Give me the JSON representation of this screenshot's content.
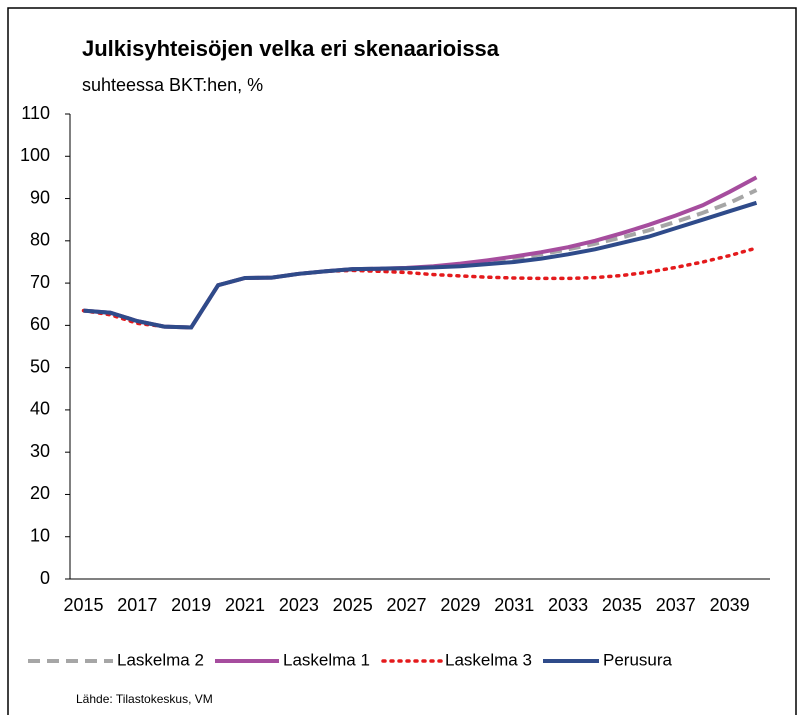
{
  "chart_data": {
    "type": "line",
    "title": "Julkisyhteisöjen velka eri skenaarioissa",
    "subtitle": "suhteessa BKT:hen, %",
    "source": "Lähde: Tilastokeskus, VM",
    "categories": [
      "2015",
      null,
      "2017",
      null,
      "2019",
      null,
      "2021",
      null,
      "2023",
      null,
      "2025",
      null,
      "2027",
      null,
      "2029",
      null,
      "2031",
      null,
      "2033",
      null,
      "2035",
      null,
      "2037",
      null,
      "2039",
      null
    ],
    "ylim": [
      0,
      110
    ],
    "yticks": [
      0,
      10,
      20,
      30,
      40,
      50,
      60,
      70,
      80,
      90,
      100,
      110
    ],
    "grid": false,
    "legend": "bottom",
    "series": [
      {
        "name": "Laskelma 2",
        "color": "#a6a6a6",
        "dash": "dashed",
        "values": [
          63.5,
          63,
          61,
          59.7,
          59.5,
          69.5,
          71.2,
          71.3,
          72.2,
          72.8,
          73.3,
          73.4,
          73.5,
          73.8,
          74.3,
          75,
          75.8,
          76.8,
          78,
          79.3,
          80.8,
          82.5,
          84.5,
          86.6,
          89,
          92
        ]
      },
      {
        "name": "Laskelma 1",
        "color": "#a64d9e",
        "dash": "solid",
        "values": [
          63.5,
          63,
          61,
          59.7,
          59.5,
          69.5,
          71.2,
          71.3,
          72.2,
          72.8,
          73.3,
          73.4,
          73.6,
          74,
          74.6,
          75.4,
          76.3,
          77.3,
          78.5,
          80,
          81.8,
          83.8,
          86,
          88.4,
          91.6,
          95
        ]
      },
      {
        "name": "Laskelma 3",
        "color": "#e41a1c",
        "dash": "dotted",
        "values": [
          63.5,
          62.5,
          60.5,
          59.7,
          59.5,
          69.5,
          71.2,
          71.3,
          72.2,
          72.8,
          73,
          72.8,
          72.5,
          72,
          71.7,
          71.4,
          71.2,
          71.1,
          71.1,
          71.3,
          71.8,
          72.6,
          73.7,
          75,
          76.5,
          78.3
        ]
      },
      {
        "name": "Perusura",
        "color": "#2f4b8a",
        "dash": "solid",
        "values": [
          63.5,
          63,
          61,
          59.7,
          59.5,
          69.5,
          71.2,
          71.3,
          72.2,
          72.8,
          73.3,
          73.4,
          73.5,
          73.7,
          74,
          74.5,
          75,
          75.8,
          76.8,
          78,
          79.5,
          81,
          83,
          85,
          87,
          89
        ]
      }
    ]
  }
}
